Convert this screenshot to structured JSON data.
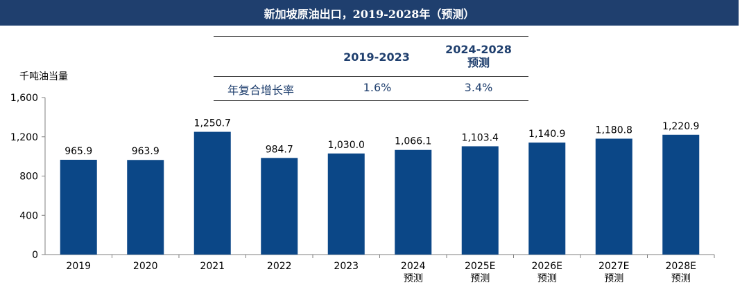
{
  "title": "新加坡原油出口，2019-2028年（预测）",
  "table": {
    "col1": "2019-2023",
    "col2_line1": "2024-2028",
    "col2_line2": "预测",
    "row_label": "年复合增长率",
    "val1": "1.6%",
    "val2": "3.4%"
  },
  "colors": {
    "bar": "#0b4787",
    "title_bg": "#1f3f6e",
    "table_text": "#1f3f6e"
  },
  "chart_data": {
    "type": "bar",
    "ylabel": "千吨油当量",
    "ylim": [
      0,
      1600
    ],
    "yticks": [
      "0",
      "400",
      "800",
      "1,200",
      "1,600"
    ],
    "yticks_values": [
      0,
      400,
      800,
      1200,
      1600
    ],
    "categories": [
      "2019",
      "2020",
      "2021",
      "2022",
      "2023",
      "2024",
      "2025E",
      "2026E",
      "2027E",
      "2028E"
    ],
    "category_sublabels": [
      "",
      "",
      "",
      "",
      "",
      "预测",
      "预测",
      "预测",
      "预测",
      "预测"
    ],
    "values": [
      965.9,
      963.9,
      1250.7,
      984.7,
      1030.0,
      1066.1,
      1103.4,
      1140.9,
      1180.8,
      1220.9
    ],
    "value_labels": [
      "965.9",
      "963.9",
      "1,250.7",
      "984.7",
      "1,030.0",
      "1,066.1",
      "1,103.4",
      "1,140.9",
      "1,180.8",
      "1,220.9"
    ],
    "grid": false,
    "legend": "none"
  }
}
